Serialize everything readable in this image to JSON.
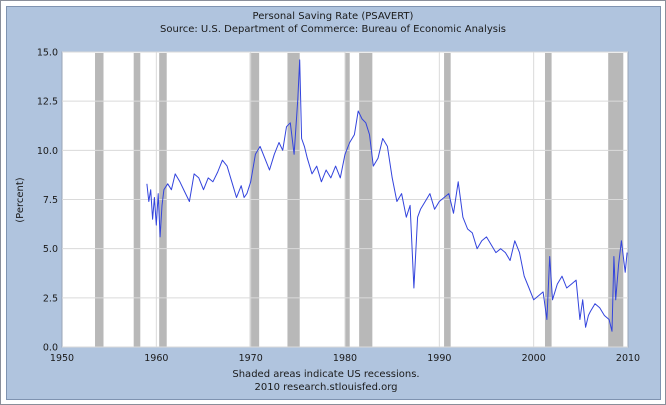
{
  "colors": {
    "background": "#b0c4de",
    "plot_area": "#ffffff",
    "recession_band": "#b8b8b8",
    "series_line": "#3344dd"
  },
  "chart_data": {
    "type": "line",
    "title": "Personal Saving Rate (PSAVERT)",
    "subtitle": "Source: U.S. Department of Commerce: Bureau of Economic Analysis",
    "xlabel": "",
    "ylabel": "(Percent)",
    "xlim": [
      1950,
      2010
    ],
    "ylim": [
      0.0,
      15.0
    ],
    "x_ticks": [
      1950,
      1960,
      1970,
      1980,
      1990,
      2000,
      2010
    ],
    "x_tick_labels": [
      "1950",
      "1960",
      "1970",
      "1980",
      "1990",
      "2000",
      "2010"
    ],
    "y_ticks": [
      0.0,
      2.5,
      5.0,
      7.5,
      10.0,
      12.5,
      15.0
    ],
    "y_tick_labels": [
      "0.0",
      "2.5",
      "5.0",
      "7.5",
      "10.0",
      "12.5",
      "15.0"
    ],
    "grid": true,
    "footer": [
      "Shaded areas indicate US recessions.",
      "2010 research.stlouisfed.org"
    ],
    "recessions": [
      [
        1953.5,
        1954.4
      ],
      [
        1957.6,
        1958.3
      ],
      [
        1960.3,
        1961.1
      ],
      [
        1969.9,
        1970.9
      ],
      [
        1973.9,
        1975.2
      ],
      [
        1980.0,
        1980.5
      ],
      [
        1981.5,
        1982.9
      ],
      [
        1990.5,
        1991.2
      ],
      [
        2001.2,
        2001.9
      ],
      [
        2007.9,
        2009.5
      ]
    ],
    "series": [
      {
        "name": "PSAVERT",
        "x": [
          1959.0,
          1959.2,
          1959.4,
          1959.6,
          1959.8,
          1960.0,
          1960.2,
          1960.4,
          1960.6,
          1960.8,
          1961.2,
          1961.6,
          1962.0,
          1962.5,
          1963.0,
          1963.5,
          1964.0,
          1964.5,
          1965.0,
          1965.5,
          1966.0,
          1966.5,
          1967.0,
          1967.5,
          1968.0,
          1968.5,
          1969.0,
          1969.3,
          1969.6,
          1970.0,
          1970.5,
          1971.0,
          1971.5,
          1972.0,
          1972.5,
          1973.0,
          1973.4,
          1973.8,
          1974.2,
          1974.6,
          1975.0,
          1975.2,
          1975.4,
          1975.7,
          1976.0,
          1976.5,
          1977.0,
          1977.5,
          1978.0,
          1978.5,
          1979.0,
          1979.5,
          1980.0,
          1980.5,
          1981.0,
          1981.4,
          1981.8,
          1982.2,
          1982.6,
          1983.0,
          1983.5,
          1984.0,
          1984.5,
          1985.0,
          1985.5,
          1986.0,
          1986.5,
          1986.9,
          1987.3,
          1987.7,
          1988.0,
          1988.5,
          1989.0,
          1989.5,
          1990.0,
          1990.5,
          1991.0,
          1991.5,
          1992.0,
          1992.5,
          1993.0,
          1993.5,
          1994.0,
          1994.5,
          1995.0,
          1995.5,
          1996.0,
          1996.5,
          1997.0,
          1997.5,
          1998.0,
          1998.5,
          1999.0,
          1999.5,
          2000.0,
          2000.5,
          2001.0,
          2001.4,
          2001.7,
          2002.0,
          2002.5,
          2003.0,
          2003.5,
          2004.0,
          2004.5,
          2004.9,
          2005.2,
          2005.5,
          2005.8,
          2006.0,
          2006.5,
          2007.0,
          2007.5,
          2008.0,
          2008.3,
          2008.5,
          2008.7,
          2009.0,
          2009.3,
          2009.5,
          2009.7,
          2009.9
        ],
        "values": [
          8.3,
          7.4,
          8.0,
          6.5,
          7.6,
          6.2,
          7.8,
          5.6,
          7.2,
          8.0,
          8.3,
          8.0,
          8.8,
          8.4,
          7.9,
          7.4,
          8.8,
          8.6,
          8.0,
          8.6,
          8.4,
          8.9,
          9.5,
          9.2,
          8.4,
          7.6,
          8.2,
          7.6,
          7.8,
          8.4,
          9.8,
          10.2,
          9.6,
          9.0,
          9.8,
          10.4,
          10.0,
          11.2,
          11.4,
          9.8,
          12.6,
          14.6,
          10.6,
          10.2,
          9.6,
          8.8,
          9.2,
          8.4,
          9.0,
          8.6,
          9.2,
          8.6,
          9.8,
          10.4,
          10.8,
          12.0,
          11.6,
          11.4,
          10.8,
          9.2,
          9.6,
          10.6,
          10.2,
          8.6,
          7.4,
          7.8,
          6.6,
          7.2,
          3.0,
          6.6,
          7.0,
          7.4,
          7.8,
          7.0,
          7.4,
          7.6,
          7.8,
          6.8,
          8.4,
          6.6,
          6.0,
          5.8,
          5.0,
          5.4,
          5.6,
          5.2,
          4.8,
          5.0,
          4.8,
          4.4,
          5.4,
          4.8,
          3.6,
          3.0,
          2.4,
          2.6,
          2.8,
          1.4,
          4.6,
          2.4,
          3.2,
          3.6,
          3.0,
          3.2,
          3.4,
          1.4,
          2.4,
          1.0,
          1.6,
          1.8,
          2.2,
          2.0,
          1.6,
          1.4,
          0.8,
          4.6,
          2.4,
          4.2,
          5.4,
          4.6,
          3.8,
          4.8
        ]
      }
    ]
  }
}
